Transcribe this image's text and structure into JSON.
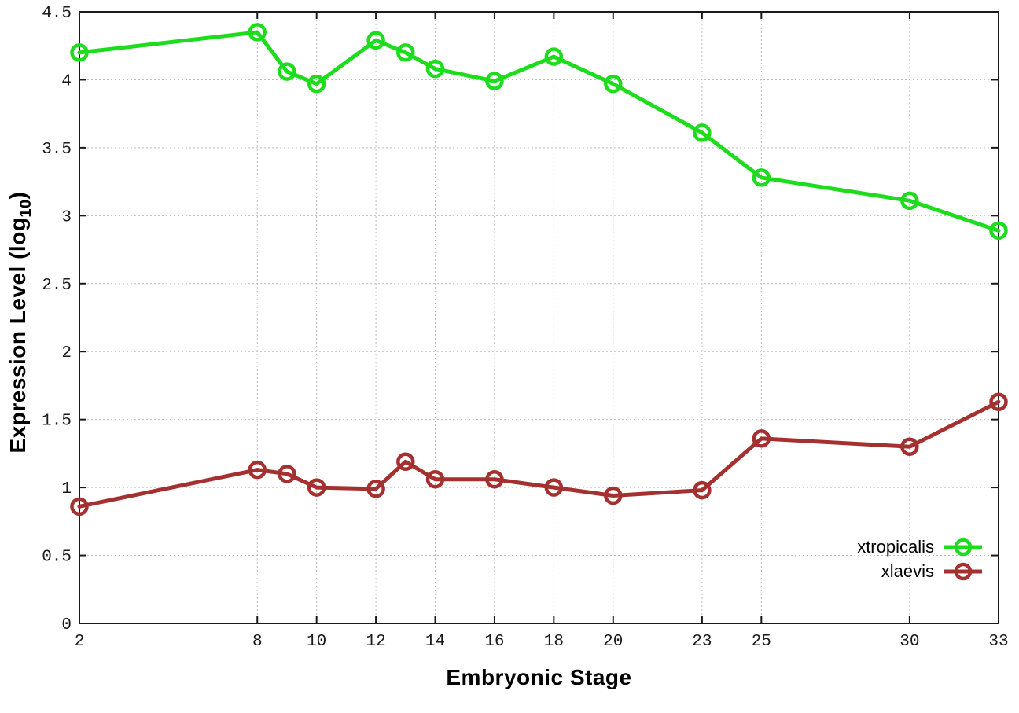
{
  "chart_data": {
    "type": "line",
    "title": "",
    "xlabel": "Embryonic Stage",
    "ylabel": "Expression Level (log10)",
    "ylabel_parts": {
      "main": "Expression Level (log",
      "sub": "10",
      "end": ")"
    },
    "x": [
      2,
      8,
      9,
      10,
      12,
      13,
      14,
      16,
      18,
      20,
      23,
      25,
      30,
      33
    ],
    "series": [
      {
        "name": "xtropicalis",
        "color": "#1cdc1c",
        "values": [
          4.2,
          4.35,
          4.06,
          3.97,
          4.29,
          4.2,
          4.08,
          3.99,
          4.17,
          3.97,
          3.61,
          3.28,
          3.11,
          2.89
        ]
      },
      {
        "name": "xlaevis",
        "color": "#a53030",
        "values": [
          0.86,
          1.13,
          1.1,
          1.0,
          0.99,
          1.19,
          1.06,
          1.06,
          1.0,
          0.94,
          0.98,
          1.36,
          1.3,
          1.63
        ]
      }
    ],
    "xticks": {
      "values": [
        2,
        8,
        10,
        12,
        14,
        16,
        18,
        20,
        23,
        25,
        30,
        33
      ],
      "labels": [
        "2",
        "8",
        "10",
        "12",
        "14",
        "16",
        "18",
        "20",
        "23",
        "25",
        "30",
        "33"
      ]
    },
    "yticks": {
      "values": [
        0,
        0.5,
        1,
        1.5,
        2,
        2.5,
        3,
        3.5,
        4,
        4.5
      ],
      "labels": [
        "0",
        "0.5",
        "1",
        "1.5",
        "2",
        "2.5",
        "3",
        "3.5",
        "4",
        "4.5"
      ]
    },
    "xlim": [
      2,
      33
    ],
    "ylim": [
      0,
      4.5
    ],
    "grid": true,
    "legend_position": "inside-bottom-right"
  },
  "colors": {
    "background": "#ffffff",
    "axis": "#1a1a1a",
    "grid": "#bdbdbd",
    "tick_label": "#1a1a1a"
  }
}
